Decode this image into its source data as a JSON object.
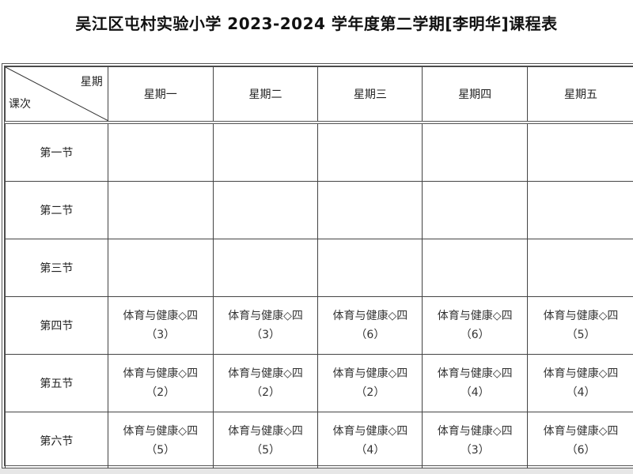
{
  "title": "吴江区屯村实验小学 2023-2024 学年度第二学期[李明华]课程表",
  "corner": {
    "top": "星期",
    "bottom": "课次"
  },
  "days": [
    "星期一",
    "星期二",
    "星期三",
    "星期四",
    "星期五"
  ],
  "periods": [
    {
      "label": "第一节",
      "cells": [
        null,
        null,
        null,
        null,
        null
      ]
    },
    {
      "label": "第二节",
      "cells": [
        null,
        null,
        null,
        null,
        null
      ]
    },
    {
      "label": "第三节",
      "cells": [
        null,
        null,
        null,
        null,
        null
      ]
    },
    {
      "label": "第四节",
      "cells": [
        {
          "course": "体育与健康◇四",
          "cls": "（3）"
        },
        {
          "course": "体育与健康◇四",
          "cls": "（3）"
        },
        {
          "course": "体育与健康◇四",
          "cls": "（6）"
        },
        {
          "course": "体育与健康◇四",
          "cls": "（6）"
        },
        {
          "course": "体育与健康◇四",
          "cls": "（5）"
        }
      ]
    },
    {
      "label": "第五节",
      "cells": [
        {
          "course": "体育与健康◇四",
          "cls": "（2）"
        },
        {
          "course": "体育与健康◇四",
          "cls": "（2）"
        },
        {
          "course": "体育与健康◇四",
          "cls": "（2）"
        },
        {
          "course": "体育与健康◇四",
          "cls": "（4）"
        },
        {
          "course": "体育与健康◇四",
          "cls": "（4）"
        }
      ]
    },
    {
      "label": "第六节",
      "cells": [
        {
          "course": "体育与健康◇四",
          "cls": "（5）"
        },
        {
          "course": "体育与健康◇四",
          "cls": "（5）"
        },
        {
          "course": "体育与健康◇四",
          "cls": "（4）"
        },
        {
          "course": "体育与健康◇四",
          "cls": "（3）"
        },
        {
          "course": "体育与健康◇四",
          "cls": "（6）"
        }
      ]
    }
  ]
}
